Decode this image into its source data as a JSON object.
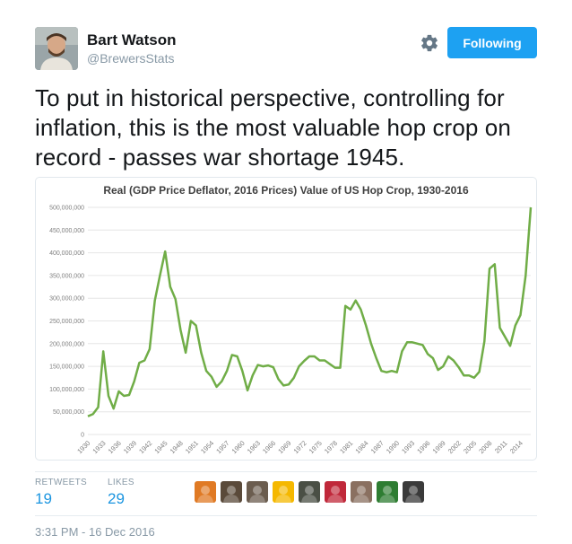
{
  "author": {
    "name": "Bart Watson",
    "handle": "@BrewersStats"
  },
  "follow_label": "Following",
  "text": "To put in historical perspective, controlling for inflation, this is the most valuable hop crop on record - passes war shortage 1945.",
  "chart_data": {
    "type": "line",
    "title": "Real (GDP Price Deflator, 2016 Prices) Value of US Hop Crop, 1930-2016",
    "xlabel": "",
    "ylabel": "",
    "ylim": [
      0,
      500000000
    ],
    "yticks": [
      "0",
      "50,000,000",
      "100,000,000",
      "150,000,000",
      "200,000,000",
      "250,000,000",
      "300,000,000",
      "350,000,000",
      "400,000,000",
      "450,000,000",
      "500,000,000"
    ],
    "xticks": [
      "1930",
      "1933",
      "1936",
      "1939",
      "1942",
      "1945",
      "1948",
      "1951",
      "1954",
      "1957",
      "1960",
      "1963",
      "1966",
      "1969",
      "1972",
      "1975",
      "1978",
      "1981",
      "1984",
      "1987",
      "1990",
      "1993",
      "1996",
      "1999",
      "2002",
      "2005",
      "2008",
      "2011",
      "2014"
    ],
    "grid": true,
    "color": "#70ad47",
    "x": [
      1930,
      1931,
      1932,
      1933,
      1934,
      1935,
      1936,
      1937,
      1938,
      1939,
      1940,
      1941,
      1942,
      1943,
      1944,
      1945,
      1946,
      1947,
      1948,
      1949,
      1950,
      1951,
      1952,
      1953,
      1954,
      1955,
      1956,
      1957,
      1958,
      1959,
      1960,
      1961,
      1962,
      1963,
      1964,
      1965,
      1966,
      1967,
      1968,
      1969,
      1970,
      1971,
      1972,
      1973,
      1974,
      1975,
      1976,
      1977,
      1978,
      1979,
      1980,
      1981,
      1982,
      1983,
      1984,
      1985,
      1986,
      1987,
      1988,
      1989,
      1990,
      1991,
      1992,
      1993,
      1994,
      1995,
      1996,
      1997,
      1998,
      1999,
      2000,
      2001,
      2002,
      2003,
      2004,
      2005,
      2006,
      2007,
      2008,
      2009,
      2010,
      2011,
      2012,
      2013,
      2014,
      2015,
      2016
    ],
    "values": [
      40000000,
      45000000,
      60000000,
      183000000,
      85000000,
      57000000,
      95000000,
      85000000,
      87000000,
      117000000,
      158000000,
      163000000,
      188000000,
      295000000,
      350000000,
      403000000,
      325000000,
      298000000,
      230000000,
      180000000,
      250000000,
      240000000,
      180000000,
      140000000,
      127000000,
      105000000,
      117000000,
      140000000,
      175000000,
      172000000,
      140000000,
      97000000,
      130000000,
      153000000,
      150000000,
      152000000,
      148000000,
      122000000,
      108000000,
      110000000,
      125000000,
      150000000,
      162000000,
      172000000,
      172000000,
      163000000,
      163000000,
      155000000,
      147000000,
      147000000,
      283000000,
      275000000,
      295000000,
      275000000,
      240000000,
      200000000,
      168000000,
      140000000,
      137000000,
      140000000,
      137000000,
      183000000,
      203000000,
      203000000,
      200000000,
      197000000,
      177000000,
      168000000,
      142000000,
      150000000,
      172000000,
      163000000,
      148000000,
      130000000,
      130000000,
      125000000,
      138000000,
      205000000,
      365000000,
      375000000,
      235000000,
      215000000,
      195000000,
      240000000,
      263000000,
      350000000,
      500000000
    ]
  },
  "stats": {
    "retweets_label": "RETWEETS",
    "retweets": "19",
    "likes_label": "LIKES",
    "likes": "29"
  },
  "likers": [
    {
      "name": "liker-avatar-1",
      "color": "#e07a24"
    },
    {
      "name": "liker-avatar-2",
      "color": "#5a4a3a"
    },
    {
      "name": "liker-avatar-3",
      "color": "#6b5d4f"
    },
    {
      "name": "liker-avatar-4",
      "color": "#f5b800"
    },
    {
      "name": "liker-avatar-5",
      "color": "#4a4f45"
    },
    {
      "name": "liker-avatar-6",
      "color": "#c0283a"
    },
    {
      "name": "liker-avatar-7",
      "color": "#8a7060"
    },
    {
      "name": "liker-avatar-8",
      "color": "#2e7d32"
    },
    {
      "name": "liker-avatar-9",
      "color": "#3a3a3a"
    }
  ],
  "timestamp": "3:31 PM - 16 Dec 2016"
}
